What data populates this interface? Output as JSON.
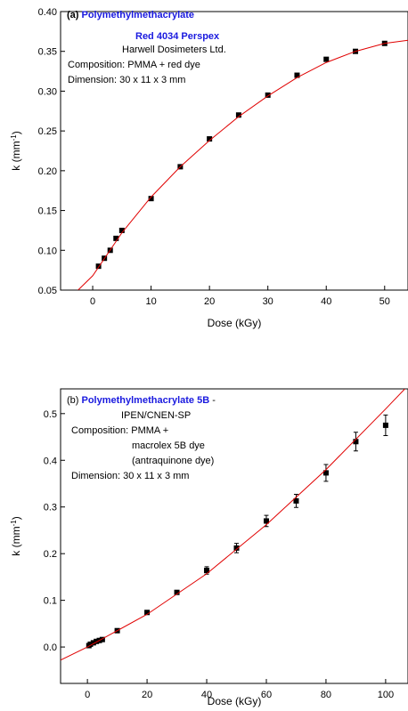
{
  "chart_data": [
    {
      "type": "scatter",
      "annotation": [
        [
          {
            "text": "(a) ",
            "color": "#000000",
            "bold": true
          },
          {
            "text": "Polymethylmethacrylate",
            "color": "#1a1adf",
            "bold": true
          }
        ],
        [
          {
            "text": "Red 4034 Perspex",
            "color": "#1a1adf",
            "bold": true
          }
        ],
        [
          {
            "text": "Harwell Dosimeters Ltd.",
            "color": "#000000",
            "bold": false
          }
        ],
        [
          {
            "text": "Composition: PMMA + red dye",
            "color": "#000000",
            "bold": false
          }
        ],
        [
          {
            "text": "Dimension: 30 x 11 x 3 mm",
            "color": "#000000",
            "bold": false
          }
        ]
      ],
      "x_label": "Dose (kGy)",
      "y_label": [
        "k (mm",
        "-1",
        ")"
      ],
      "xlim": [
        -5.5,
        54
      ],
      "xticks": [
        0,
        10,
        20,
        30,
        40,
        50
      ],
      "ylim": [
        0.05,
        0.4
      ],
      "yticks": [
        0.05,
        {
          "value": 0.1,
          "label": "0.10"
        },
        0.15,
        {
          "value": 0.2,
          "label": "0.20"
        },
        0.25,
        {
          "value": 0.3,
          "label": "0.30"
        },
        0.35,
        {
          "value": 0.4,
          "label": "0.40"
        }
      ],
      "series": [
        {
          "type": "scatter",
          "color": "#000000",
          "x": [
            1,
            2,
            3,
            4,
            5,
            10,
            15,
            20,
            25,
            30,
            35,
            40,
            45,
            50
          ],
          "values": [
            0.08,
            0.09,
            0.1,
            0.115,
            0.125,
            0.165,
            0.205,
            0.24,
            0.27,
            0.295,
            0.32,
            0.34,
            0.35,
            0.36
          ]
        },
        {
          "type": "line",
          "color": "#e00000",
          "x": [
            -2.5,
            0,
            5,
            10,
            15,
            20,
            25,
            30,
            35,
            40,
            45,
            50,
            54
          ],
          "values": [
            0.05,
            0.068,
            0.122,
            0.167,
            0.205,
            0.238,
            0.268,
            0.294,
            0.317,
            0.336,
            0.35,
            0.36,
            0.364
          ]
        }
      ]
    },
    {
      "type": "scatter",
      "annotation": [
        [
          {
            "text": "(b) ",
            "color": "#000000",
            "bold": false
          },
          {
            "text": "Polymethylmethacrylate 5B",
            "color": "#1a1adf",
            "bold": true
          },
          {
            "text": " -",
            "color": "#000000",
            "bold": false
          }
        ],
        [
          {
            "text": "IPEN/CNEN-SP",
            "color": "#000000",
            "bold": false
          }
        ],
        [
          {
            "text": "Composition: PMMA +",
            "color": "#000000",
            "bold": false
          }
        ],
        [
          {
            "text": "macrolex 5B dye",
            "color": "#000000",
            "bold": false
          }
        ],
        [
          {
            "text": "(antraquinone dye)",
            "color": "#000000",
            "bold": false
          }
        ],
        [
          {
            "text": "Dimension: 30 x 11 x 3 mm",
            "color": "#000000",
            "bold": false
          }
        ]
      ],
      "x_label": "Dose (kGy)",
      "y_label": [
        "k (mm",
        "-1",
        ")"
      ],
      "xlim": [
        -9,
        107.5
      ],
      "xticks": [
        0,
        20,
        40,
        60,
        80,
        100
      ],
      "ylim": [
        -0.078,
        0.553
      ],
      "yticks": [
        {
          "value": 0,
          "label": "0.0"
        },
        0.1,
        0.2,
        0.3,
        0.4,
        0.5
      ],
      "series": [
        {
          "type": "scatter",
          "color": "#000000",
          "x": [
            0.5,
            1,
            2,
            3,
            4,
            5,
            10,
            20,
            30,
            40,
            50,
            60,
            70,
            80,
            90,
            100
          ],
          "values": [
            0.003,
            0.006,
            0.009,
            0.012,
            0.014,
            0.016,
            0.035,
            0.074,
            0.117,
            0.164,
            0.212,
            0.27,
            0.313,
            0.373,
            0.44,
            0.475
          ],
          "errors": [
            0.002,
            0.002,
            0.002,
            0.002,
            0.002,
            0.002,
            0.003,
            0.003,
            0.004,
            0.008,
            0.01,
            0.012,
            0.014,
            0.018,
            0.02,
            0.022
          ]
        },
        {
          "type": "line",
          "color": "#e00000",
          "x": [
            -9,
            0,
            20,
            40,
            60,
            80,
            100,
            107.5
          ],
          "values": [
            -0.028,
            0,
            0.07,
            0.157,
            0.262,
            0.38,
            0.51,
            0.56
          ]
        }
      ]
    }
  ]
}
